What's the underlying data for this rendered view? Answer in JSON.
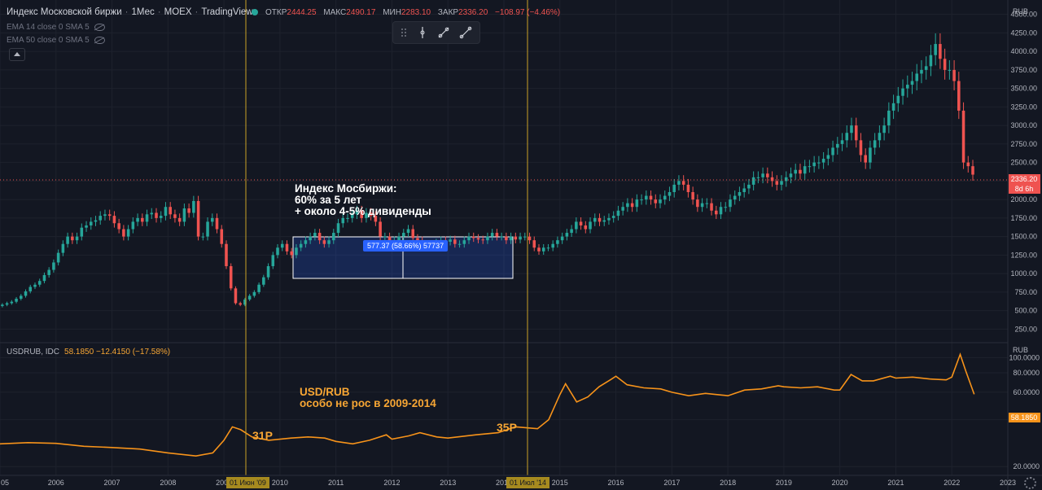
{
  "header": {
    "symbol_title": "Индекс Московской биржи",
    "interval": "1Мес",
    "exchange": "MOEX",
    "source": "TradingView",
    "ohlc": [
      {
        "key": "ОТКР",
        "value": "2444.25"
      },
      {
        "key": "МАКС",
        "value": "2490.17"
      },
      {
        "key": "МИН",
        "value": "2283.10"
      },
      {
        "key": "ЗАКР",
        "value": "2336.20"
      },
      {
        "key": "",
        "value": "−108.97 (−4.46%)"
      }
    ]
  },
  "indicators": [
    {
      "label": "EMA 14 close 0 SMA 5"
    },
    {
      "label": "EMA 50 close 0 SMA 5"
    }
  ],
  "annotations": {
    "moex_line1": "Индекс Мосбиржи:",
    "moex_line2": "60% за 5 лет",
    "moex_line3": "+ около 4-5% дивиденды",
    "usd_line1": "USD/RUB",
    "usd_line2": "особо не рос в 2009-2014",
    "mark_2009": "31Р",
    "mark_2014": "35Р",
    "measure_label": "577.37 (58.66%) 57737"
  },
  "usd_legend": {
    "title": "USDRUB, IDC",
    "value": "58.1850 −12.4150 (−17.58%)"
  },
  "axis": {
    "price_unit": "RUB",
    "usd_unit": "RUB",
    "current_price": "2336.20",
    "countdown": "8d 6h",
    "current_usd": "58.1850",
    "date_tag_1": "01 Июн '09",
    "date_tag_2": "01 Июл '14"
  },
  "colors": {
    "background": "#131722",
    "up": "#26a69a",
    "down": "#ef5350",
    "usd_line": "#f7931a",
    "vline": "#c9a227",
    "measure_box": "#2962ff"
  },
  "chart_data": [
    {
      "type": "candlestick",
      "title": "Индекс Московской биржи",
      "ylabel": "RUB",
      "scale": "linear",
      "ylim": [
        100,
        4650
      ],
      "yticks": [
        250,
        500,
        750,
        1000,
        1250,
        1500,
        1750,
        2000,
        2250,
        2500,
        2750,
        3000,
        3250,
        3500,
        3750,
        4000,
        4250,
        4500
      ],
      "ytick_labels": [
        "250.00",
        "500.00",
        "750.00",
        "1000.00",
        "1250.00",
        "1500.00",
        "1750.00",
        "2000.00",
        "2250.00",
        "2500.00",
        "2750.00",
        "3000.00",
        "3250.00",
        "3500.00",
        "3750.00",
        "4000.00",
        "4250.00",
        "4500.00"
      ],
      "x_ticks": [
        "05",
        "2006",
        "2007",
        "2008",
        "2009",
        "2010",
        "2011",
        "2012",
        "2013",
        "2014",
        "2015",
        "2016",
        "2017",
        "2018",
        "2019",
        "2020",
        "2021",
        "2022",
        "2023"
      ],
      "x_start": 2005.0,
      "x_end": 2023.0,
      "close": [
        580,
        600,
        620,
        660,
        700,
        760,
        820,
        850,
        900,
        980,
        1050,
        1150,
        1280,
        1400,
        1500,
        1450,
        1500,
        1620,
        1650,
        1700,
        1720,
        1780,
        1800,
        1780,
        1680,
        1600,
        1500,
        1600,
        1700,
        1750,
        1700,
        1800,
        1820,
        1750,
        1780,
        1900,
        1800,
        1750,
        1700,
        1880,
        1820,
        1980,
        1500,
        1500,
        1700,
        1750,
        1600,
        1400,
        1100,
        800,
        600,
        580,
        650,
        700,
        750,
        850,
        950,
        1100,
        1250,
        1350,
        1400,
        1300,
        1250,
        1350,
        1400,
        1450,
        1500,
        1550,
        1450,
        1400,
        1450,
        1550,
        1680,
        1750,
        1750,
        1800,
        1850,
        1750,
        1820,
        1780,
        1700,
        1500,
        1500,
        1400,
        1450,
        1500,
        1550,
        1600,
        1480,
        1450,
        1400,
        1350,
        1400,
        1420,
        1450,
        1430,
        1460,
        1400,
        1400,
        1450,
        1500,
        1480,
        1460,
        1450,
        1500,
        1550,
        1500,
        1500,
        1450,
        1500,
        1460,
        1500,
        1500,
        1450,
        1350,
        1300,
        1350,
        1350,
        1400,
        1450,
        1500,
        1550,
        1600,
        1700,
        1650,
        1600,
        1700,
        1750,
        1700,
        1720,
        1750,
        1780,
        1850,
        1900,
        1950,
        1900,
        2000,
        2000,
        2050,
        2000,
        1950,
        2000,
        2050,
        2100,
        2200,
        2250,
        2200,
        2100,
        2000,
        1900,
        1950,
        1950,
        1850,
        1800,
        1900,
        1900,
        2000,
        2050,
        2100,
        2150,
        2200,
        2300,
        2300,
        2350,
        2300,
        2250,
        2200,
        2250,
        2300,
        2350,
        2400,
        2350,
        2450,
        2450,
        2500,
        2500,
        2550,
        2600,
        2700,
        2750,
        2800,
        2900,
        3000,
        2800,
        2600,
        2500,
        2700,
        2800,
        2900,
        3000,
        3200,
        3300,
        3400,
        3500,
        3550,
        3600,
        3700,
        3750,
        3800,
        3950,
        4100,
        3900,
        3750,
        3750,
        3600,
        3200,
        2500,
        2450,
        2336
      ]
    },
    {
      "type": "line",
      "title": "USDRUB, IDC",
      "ylabel": "RUB",
      "scale": "log",
      "ylim": [
        18,
        112
      ],
      "yticks": [
        20,
        40,
        60,
        80,
        100
      ],
      "ytick_labels": [
        "20.0000",
        "40.0000",
        "60.0000",
        "80.0000",
        "100.0000"
      ],
      "x_start": 2005.0,
      "x_end": 2023.0,
      "series": [
        {
          "points": [
            [
              2005.0,
              28.0
            ],
            [
              2005.5,
              28.5
            ],
            [
              2006.0,
              28.2
            ],
            [
              2006.5,
              27.0
            ],
            [
              2007.0,
              26.5
            ],
            [
              2007.5,
              25.9
            ],
            [
              2008.0,
              24.5
            ],
            [
              2008.5,
              23.4
            ],
            [
              2008.8,
              24.5
            ],
            [
              2009.0,
              29.5
            ],
            [
              2009.15,
              36.0
            ],
            [
              2009.3,
              34.5
            ],
            [
              2009.5,
              31.0
            ],
            [
              2009.8,
              29.5
            ],
            [
              2010.2,
              30.5
            ],
            [
              2010.5,
              31.0
            ],
            [
              2010.8,
              30.5
            ],
            [
              2011.0,
              29.0
            ],
            [
              2011.3,
              28.0
            ],
            [
              2011.6,
              29.5
            ],
            [
              2011.9,
              32.0
            ],
            [
              2012.0,
              30.0
            ],
            [
              2012.3,
              31.5
            ],
            [
              2012.5,
              33.0
            ],
            [
              2012.8,
              31.0
            ],
            [
              2013.0,
              30.5
            ],
            [
              2013.5,
              32.0
            ],
            [
              2013.9,
              33.0
            ],
            [
              2014.2,
              36.0
            ],
            [
              2014.6,
              35.0
            ],
            [
              2014.8,
              40.0
            ],
            [
              2015.0,
              58.0
            ],
            [
              2015.1,
              68.0
            ],
            [
              2015.3,
              52.0
            ],
            [
              2015.5,
              56.0
            ],
            [
              2015.7,
              65.0
            ],
            [
              2015.9,
              72.0
            ],
            [
              2016.0,
              76.0
            ],
            [
              2016.2,
              67.0
            ],
            [
              2016.5,
              64.0
            ],
            [
              2016.8,
              63.0
            ],
            [
              2017.0,
              60.0
            ],
            [
              2017.3,
              57.0
            ],
            [
              2017.6,
              59.0
            ],
            [
              2017.9,
              57.5
            ],
            [
              2018.0,
              57.0
            ],
            [
              2018.3,
              62.0
            ],
            [
              2018.6,
              63.0
            ],
            [
              2018.9,
              66.0
            ],
            [
              2019.0,
              65.0
            ],
            [
              2019.3,
              64.0
            ],
            [
              2019.6,
              65.0
            ],
            [
              2019.9,
              62.0
            ],
            [
              2020.0,
              62.0
            ],
            [
              2020.2,
              78.0
            ],
            [
              2020.4,
              71.0
            ],
            [
              2020.6,
              71.0
            ],
            [
              2020.9,
              76.0
            ],
            [
              2021.0,
              74.0
            ],
            [
              2021.3,
              75.0
            ],
            [
              2021.6,
              73.0
            ],
            [
              2021.9,
              72.0
            ],
            [
              2022.0,
              75.0
            ],
            [
              2022.15,
              105.0
            ],
            [
              2022.25,
              82.0
            ],
            [
              2022.4,
              58.2
            ]
          ]
        }
      ]
    }
  ]
}
